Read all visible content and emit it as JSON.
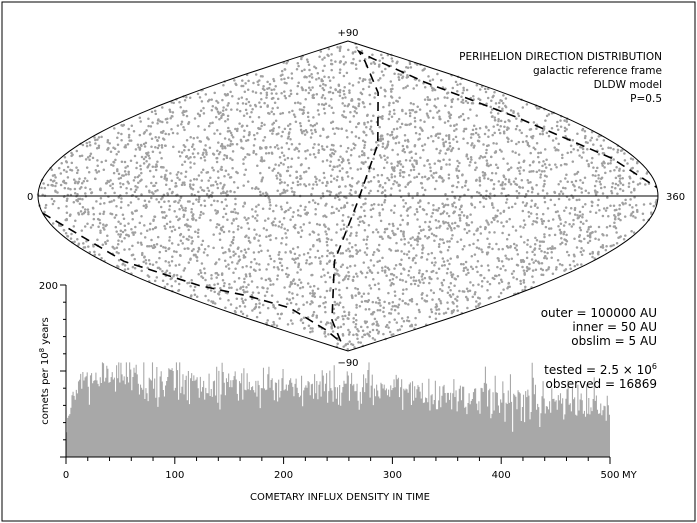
{
  "chart_data": [
    {
      "type": "scatter",
      "title": "PERIHELION DIRECTION DISTRIBUTION",
      "subtitle_lines": [
        "galactic reference frame",
        "DLDW model",
        "P=0.5"
      ],
      "projection": "sinusoidal sky map",
      "xlim": [
        0,
        360
      ],
      "ylim": [
        -90,
        90
      ],
      "label_left": "0",
      "label_right": "360",
      "label_top": "+90",
      "label_bottom": "−90",
      "point_color": "#a0a0a0",
      "equator_line": true,
      "dashed_curve": {
        "style": "dashed",
        "points": [
          [
            0,
            -10
          ],
          [
            15,
            -38
          ],
          [
            40,
            -52
          ],
          [
            70,
            -58
          ],
          [
            100,
            -65
          ],
          [
            120,
            -78
          ],
          [
            135,
            -85
          ],
          [
            150,
            -72
          ],
          [
            170,
            -38
          ],
          [
            185,
            -5
          ],
          [
            200,
            30
          ],
          [
            215,
            60
          ],
          [
            228,
            78
          ],
          [
            240,
            84
          ],
          [
            260,
            80
          ],
          [
            290,
            66
          ],
          [
            320,
            46
          ],
          [
            345,
            22
          ],
          [
            360,
            5
          ]
        ]
      }
    },
    {
      "type": "bar",
      "ylabel_parts": [
        "comets per 10",
        "8",
        " years"
      ],
      "xlabel": "COMETARY INFLUX DENSITY IN TIME",
      "x_unit": "MY",
      "xlim": [
        0,
        500
      ],
      "ylim": [
        0,
        200
      ],
      "x_ticks": [
        0,
        100,
        200,
        300,
        400,
        500
      ],
      "y_tick_label": "200",
      "bar_color": "#a8a8a8",
      "envelope": [
        [
          0,
          30
        ],
        [
          8,
          80
        ],
        [
          20,
          88
        ],
        [
          50,
          96
        ],
        [
          100,
          88
        ],
        [
          150,
          86
        ],
        [
          200,
          84
        ],
        [
          250,
          81
        ],
        [
          300,
          78
        ],
        [
          350,
          73
        ],
        [
          400,
          69
        ],
        [
          450,
          64
        ],
        [
          500,
          57
        ]
      ]
    }
  ],
  "info": {
    "outer": "outer = 100000 AU",
    "inner": "inner = 50 AU",
    "obslim": "obslim = 5 AU",
    "tested_prefix": "tested = 2.5 × 10",
    "tested_exp": "6",
    "observed": "observed = 16869"
  }
}
